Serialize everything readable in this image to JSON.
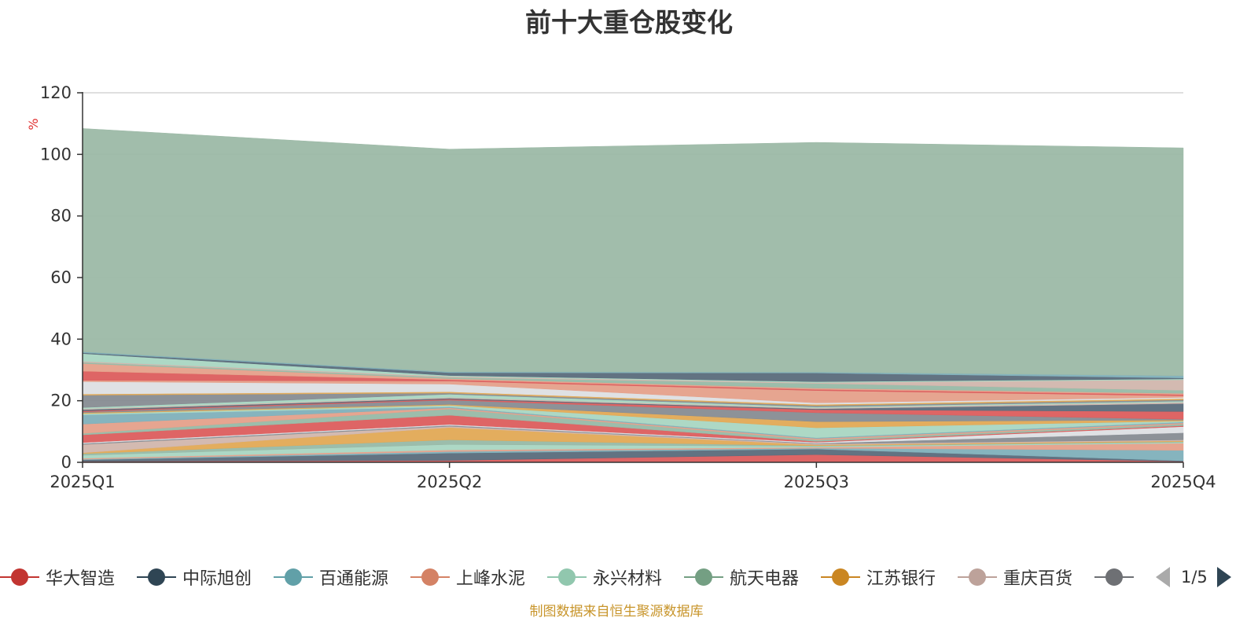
{
  "chart_data": {
    "type": "area",
    "stacked": true,
    "title": "前十大重仓股变化",
    "ylabel": "%",
    "categories": [
      "2025Q1",
      "2025Q2",
      "2025Q3",
      "2025Q4"
    ],
    "y_ticks": [
      0,
      20,
      40,
      60,
      80,
      100,
      120
    ],
    "ylim": [
      0,
      120
    ],
    "grid": true,
    "legend_position": "bottom",
    "series": [
      {
        "name": "华大智造",
        "color": "#dc5d5d",
        "values": [
          0.3,
          0.6,
          2.5,
          0.3
        ]
      },
      {
        "name": "中际旭创",
        "color": "#5a6b7b",
        "values": [
          0.5,
          2.4,
          1.8,
          0.2
        ]
      },
      {
        "name": "百通能源",
        "color": "#7fb0ba",
        "values": [
          0.2,
          0.5,
          0.3,
          3.4
        ]
      },
      {
        "name": "上峰水泥",
        "color": "#e5a08a",
        "values": [
          0.3,
          0.5,
          0.3,
          2.3
        ]
      },
      {
        "name": "永兴材料",
        "color": "#a9d6c2",
        "values": [
          1.0,
          1.8,
          0.3,
          0.3
        ]
      },
      {
        "name": "航天电器",
        "color": "#97b9a6",
        "values": [
          0.5,
          1.5,
          0.2,
          0.2
        ]
      },
      {
        "name": "江苏银行",
        "color": "#e1a955",
        "values": [
          0.3,
          4.0,
          0.3,
          0.3
        ]
      },
      {
        "name": "重庆百货",
        "color": "#d1b6ad",
        "values": [
          2.7,
          0.4,
          0.3,
          0.3
        ]
      },
      {
        "name": "",
        "color": "#878c92",
        "values": [
          0.3,
          0.3,
          0.2,
          2.3
        ]
      },
      {
        "name": "",
        "color": "#dddfe3",
        "values": [
          0.3,
          0.3,
          0.3,
          2.0
        ]
      },
      {
        "name": "",
        "color": "#dc5d5d",
        "values": [
          2.5,
          3.0,
          0.3,
          0.3
        ]
      },
      {
        "name": "",
        "color": "#97b9a6",
        "values": [
          0.5,
          2.0,
          0.5,
          0.5
        ]
      },
      {
        "name": "",
        "color": "#e5a08a",
        "values": [
          3.0,
          0.4,
          0.4,
          0.4
        ]
      },
      {
        "name": "",
        "color": "#7fb0ba",
        "values": [
          3.0,
          0.3,
          0.3,
          0.3
        ]
      },
      {
        "name": "",
        "color": "#a9d6c2",
        "values": [
          0.4,
          0.5,
          3.2,
          0.3
        ]
      },
      {
        "name": "",
        "color": "#e1a955",
        "values": [
          0.3,
          0.3,
          2.0,
          0.3
        ]
      },
      {
        "name": "",
        "color": "#878c92",
        "values": [
          0.3,
          1.4,
          2.9,
          0.3
        ]
      },
      {
        "name": "",
        "color": "#dc5d5d",
        "values": [
          0.3,
          0.3,
          1.0,
          2.5
        ]
      },
      {
        "name": "",
        "color": "#5a6b7b",
        "values": [
          0.4,
          0.3,
          0.3,
          2.6
        ]
      },
      {
        "name": "",
        "color": "#d1b6ad",
        "values": [
          0.3,
          0.3,
          0.3,
          0.4
        ]
      },
      {
        "name": "",
        "color": "#a9d6c2",
        "values": [
          0.4,
          1.0,
          0.3,
          0.4
        ]
      },
      {
        "name": "",
        "color": "#878c92",
        "values": [
          4.0,
          0.4,
          0.4,
          0.4
        ]
      },
      {
        "name": "",
        "color": "#e1a955",
        "values": [
          0.4,
          0.4,
          0.4,
          0.4
        ]
      },
      {
        "name": "",
        "color": "#dddfe3",
        "values": [
          4.0,
          2.5,
          0.5,
          0.4
        ]
      },
      {
        "name": "",
        "color": "#e5a08a",
        "values": [
          0.4,
          1.0,
          4.0,
          0.5
        ]
      },
      {
        "name": "",
        "color": "#dc5d5d",
        "values": [
          3.0,
          0.4,
          0.4,
          0.4
        ]
      },
      {
        "name": "",
        "color": "#e5a08a",
        "values": [
          2.5,
          0.4,
          0.4,
          0.4
        ]
      },
      {
        "name": "",
        "color": "#97b9a6",
        "values": [
          0.4,
          0.4,
          1.5,
          1.0
        ]
      },
      {
        "name": "",
        "color": "#d1b6ad",
        "values": [
          0.3,
          0.3,
          0.3,
          3.4
        ]
      },
      {
        "name": "",
        "color": "#a9d6c2",
        "values": [
          2.5,
          0.3,
          0.3,
          0.3
        ]
      },
      {
        "name": "",
        "color": "#5a6b7b",
        "values": [
          0.3,
          0.9,
          2.8,
          0.3
        ]
      },
      {
        "name": "",
        "color": "#7fb0ba",
        "values": [
          0.3,
          0.3,
          0.3,
          0.7
        ]
      },
      {
        "name": "",
        "color": "#9cb9a6",
        "values": [
          72.5,
          72.3,
          74.6,
          74.0
        ]
      }
    ]
  },
  "legend": {
    "visible_items": [
      {
        "name": "华大智造",
        "color": "#c23531"
      },
      {
        "name": "中际旭创",
        "color": "#2f4554"
      },
      {
        "name": "百通能源",
        "color": "#61a0a8"
      },
      {
        "name": "上峰水泥",
        "color": "#d48265"
      },
      {
        "name": "永兴材料",
        "color": "#91c7ae"
      },
      {
        "name": "航天电器",
        "color": "#749f83"
      },
      {
        "name": "江苏银行",
        "color": "#ca8622"
      },
      {
        "name": "重庆百货",
        "color": "#bda29a"
      },
      {
        "name": "",
        "color": "#6e7074"
      }
    ],
    "page_indicator": "1/5"
  },
  "footer": {
    "source_note": "制图数据来自恒生聚源数据库"
  },
  "colors": {
    "axis_label": "#333333",
    "ylabel": "#e03030",
    "gridline": "#cccccc",
    "source_note": "#c8952b",
    "pager_active": "#2f4554",
    "pager_inactive": "#aaaaaa"
  },
  "icons": {
    "prev": "triangle-left-icon",
    "next": "triangle-right-icon",
    "legend_marker": "line-circle-icon"
  }
}
